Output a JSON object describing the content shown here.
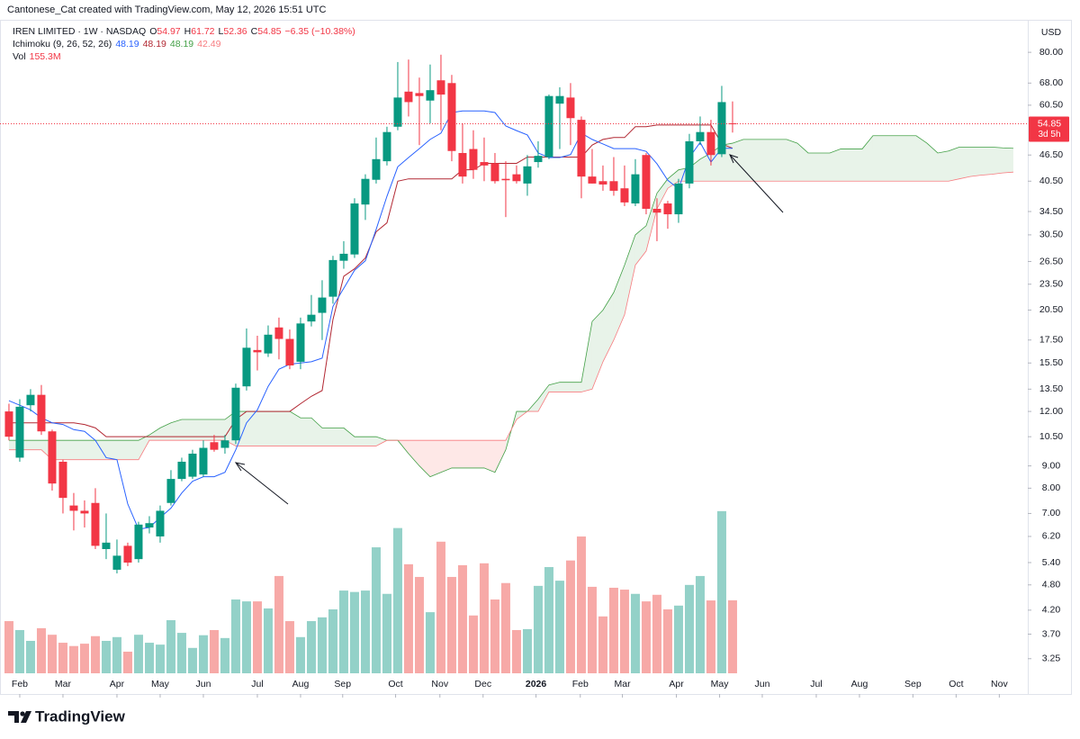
{
  "header": {
    "attribution": "Cantonese_Cat created with TradingView.com, May 12, 2026 15:51 UTC",
    "brand": "TradingView"
  },
  "chart_data": {
    "type": "candlestick",
    "symbol": "IREN LIMITED · 1W · NASDAQ",
    "ohlc_labels": [
      "O",
      "H",
      "L",
      "C"
    ],
    "change": "−6.35 (−10.38%)",
    "currency": "USD",
    "countdown": "3d 5h",
    "colors": {
      "up": "#089981",
      "down": "#f23645",
      "volume_up": "#93d1c8",
      "volume_down": "#f7a9a7"
    },
    "yscale": "log",
    "ylim": [
      2.71,
      95.9
    ],
    "yticks": [
      {
        "value": 80,
        "label": "80.00"
      },
      {
        "value": 68,
        "label": "68.00"
      },
      {
        "value": 60.5,
        "label": "60.50"
      },
      {
        "value": 46.5,
        "label": "46.50"
      },
      {
        "value": 40.5,
        "label": "40.50"
      },
      {
        "value": 34.5,
        "label": "34.50"
      },
      {
        "value": 30.5,
        "label": "30.50"
      },
      {
        "value": 26.5,
        "label": "26.50"
      },
      {
        "value": 23.5,
        "label": "23.50"
      },
      {
        "value": 20.5,
        "label": "20.50"
      },
      {
        "value": 17.5,
        "label": "17.50"
      },
      {
        "value": 15.5,
        "label": "15.50"
      },
      {
        "value": 13.5,
        "label": "13.50"
      },
      {
        "value": 12,
        "label": "12.00"
      },
      {
        "value": 10.5,
        "label": "10.50"
      },
      {
        "value": 9,
        "label": "9.00"
      },
      {
        "value": 8,
        "label": "8.00"
      },
      {
        "value": 7,
        "label": "7.00"
      },
      {
        "value": 6.2,
        "label": "6.20"
      },
      {
        "value": 5.4,
        "label": "5.40"
      },
      {
        "value": 4.8,
        "label": "4.80"
      },
      {
        "value": 4.2,
        "label": "4.20"
      },
      {
        "value": 3.7,
        "label": "3.70"
      },
      {
        "value": 3.25,
        "label": "3.25"
      }
    ],
    "xlim": [
      -0.83,
      94.17
    ],
    "xticks": [
      {
        "value": 1,
        "label": "Feb"
      },
      {
        "value": 5,
        "label": "Mar"
      },
      {
        "value": 10,
        "label": "Apr"
      },
      {
        "value": 14,
        "label": "May"
      },
      {
        "value": 18,
        "label": "Jun"
      },
      {
        "value": 23,
        "label": "Jul"
      },
      {
        "value": 27,
        "label": "Aug"
      },
      {
        "value": 30.9,
        "label": "Sep"
      },
      {
        "value": 35.8,
        "label": "Oct"
      },
      {
        "value": 39.9,
        "label": "Nov"
      },
      {
        "value": 43.9,
        "label": "Dec"
      },
      {
        "value": 48.8,
        "label": "2026"
      },
      {
        "value": 52.9,
        "label": "Feb"
      },
      {
        "value": 56.8,
        "label": "Mar"
      },
      {
        "value": 61.8,
        "label": "Apr"
      },
      {
        "value": 65.8,
        "label": "May"
      },
      {
        "value": 69.75,
        "label": "Jun"
      },
      {
        "value": 74.75,
        "label": "Jul"
      },
      {
        "value": 78.75,
        "label": "Aug"
      },
      {
        "value": 83.7,
        "label": "Sep"
      },
      {
        "value": 87.7,
        "label": "Oct"
      },
      {
        "value": 91.7,
        "label": "Nov"
      }
    ],
    "open": [
      12,
      9.4,
      12.4,
      13.1,
      10.8,
      9.2,
      7.3,
      7.1,
      7.4,
      5.8,
      5.2,
      5.9,
      5.5,
      6.5,
      6.2,
      7.4,
      8.4,
      8.5,
      8.6,
      10.2,
      9.9,
      10.3,
      13.7,
      16.6,
      16.3,
      18.7,
      17.6,
      15.6,
      19.3,
      20.2,
      22,
      26.6,
      27.5,
      35.8,
      40.8,
      45,
      54,
      65,
      64.5,
      62,
      69,
      68,
      47,
      48,
      44.8,
      44.5,
      41,
      42,
      40,
      44.8,
      46,
      61,
      63,
      56,
      41.5,
      40.5,
      40.5,
      39,
      36,
      46.5,
      35,
      36,
      34,
      40,
      50,
      52.5,
      46.7,
      54.97
    ],
    "high": [
      12.5,
      12.8,
      13.5,
      13.8,
      10.9,
      9.3,
      7.8,
      7.5,
      8.0,
      7.0,
      6.1,
      6.0,
      6.7,
      6.9,
      7.3,
      8.8,
      9.4,
      9.8,
      10.3,
      10.6,
      10.6,
      13.9,
      18.6,
      17.9,
      18.9,
      19.7,
      18.5,
      19.7,
      22.2,
      24,
      27.3,
      29.5,
      37,
      42,
      51,
      54,
      76,
      77,
      70,
      75,
      79,
      71,
      55,
      53,
      51,
      47,
      45,
      44,
      46.5,
      50,
      64,
      66.5,
      68,
      57,
      48,
      44,
      46,
      44,
      45.5,
      47,
      37,
      36.5,
      41,
      52,
      57,
      56,
      67,
      61.72
    ],
    "low": [
      10.3,
      9.2,
      12,
      10.6,
      7.9,
      7.0,
      6.4,
      6.5,
      5.8,
      5.5,
      5.1,
      5.3,
      5.4,
      6.3,
      6.0,
      7.3,
      8.3,
      8.4,
      8.5,
      9.7,
      9.6,
      10.1,
      13.4,
      14.9,
      16.0,
      15.8,
      15.0,
      15.0,
      18.8,
      17.5,
      21.2,
      25.5,
      27,
      33,
      40,
      44,
      53,
      57,
      49,
      55,
      53,
      45,
      40,
      41,
      40.5,
      40,
      33.5,
      40,
      37.5,
      43.5,
      45.5,
      48,
      49,
      37,
      40,
      38.5,
      37.5,
      35.5,
      35.5,
      34,
      29.5,
      31.5,
      32.5,
      39,
      49,
      44,
      46,
      52.36
    ],
    "close": [
      10.5,
      12.3,
      13.1,
      10.8,
      8.2,
      7.6,
      7.1,
      7.0,
      5.9,
      6.0,
      5.6,
      5.4,
      6.6,
      6.65,
      7.1,
      8.4,
      9.2,
      9.6,
      9.9,
      9.8,
      10.3,
      13.6,
      16.8,
      16.4,
      18.0,
      17.6,
      15.3,
      19.1,
      20.0,
      21.9,
      26.7,
      27.6,
      36.0,
      41.0,
      45.5,
      52.5,
      63,
      61.5,
      63.5,
      65.5,
      64,
      47.5,
      41.5,
      43,
      44,
      40.5,
      40.7,
      40.5,
      43.8,
      46.3,
      63.5,
      63.5,
      56.5,
      41.5,
      40,
      39.8,
      38.5,
      36.2,
      42,
      35,
      34.3,
      34,
      40,
      50,
      52.5,
      46.5,
      61.5,
      54.85
    ],
    "volume": {
      "name": "Vol",
      "ylim": [
        0,
        383
      ],
      "values": [
        111,
        92,
        69,
        96,
        82,
        65,
        58,
        63,
        79,
        69,
        77,
        46,
        82,
        65,
        61,
        113,
        86,
        54,
        81,
        92,
        75,
        157,
        153,
        153,
        138,
        207,
        111,
        77,
        111,
        119,
        136,
        176,
        173,
        176,
        268,
        169,
        309,
        232,
        205,
        130,
        280,
        205,
        230,
        123,
        234,
        157,
        192,
        92,
        94,
        186,
        226,
        197,
        240,
        291,
        184,
        121,
        182,
        178,
        169,
        153,
        167,
        136,
        144,
        188,
        207,
        155,
        345,
        155.3
      ],
      "value_labels": [
        null,
        null,
        null,
        null,
        null,
        null,
        null,
        null,
        null,
        null,
        null,
        null,
        null,
        null,
        null,
        null,
        null,
        null,
        null,
        null,
        null,
        null,
        null,
        null,
        null,
        null,
        null,
        null,
        null,
        null,
        null,
        null,
        null,
        null,
        null,
        null,
        null,
        null,
        null,
        null,
        null,
        null,
        null,
        null,
        null,
        null,
        null,
        null,
        null,
        null,
        null,
        null,
        null,
        null,
        null,
        null,
        null,
        null,
        null,
        null,
        null,
        null,
        null,
        null,
        null,
        null,
        null,
        "155.3M"
      ]
    },
    "ichimoku": {
      "name": "Ichimoku (9, 26, 52, 26)",
      "conversion": {
        "color": "#2962ff",
        "values": [
          12.7,
          12.4,
          12.1,
          11.6,
          11.3,
          11.2,
          10.9,
          10.8,
          10.3,
          9.4,
          9.3,
          7.36,
          6.44,
          6.5,
          6.85,
          7.2,
          7.8,
          8.3,
          8.5,
          8.5,
          8.7,
          9.8,
          11.3,
          12.1,
          13.7,
          15.0,
          15.4,
          15.5,
          15.6,
          15.9,
          20.9,
          23.0,
          25.3,
          26.6,
          31.4,
          37.4,
          43.7,
          45.9,
          48.1,
          50.5,
          52.2,
          58.2,
          58.7,
          58.7,
          58.7,
          58.2,
          54.2,
          52.9,
          51.7,
          47.0,
          45.9,
          45.9,
          46.6,
          52.2,
          50.5,
          49.3,
          48.1,
          48.1,
          48.1,
          47.4,
          44.4,
          40.7,
          38.9,
          45.9,
          49.7,
          44.8,
          48.19,
          48.19
        ]
      },
      "base": {
        "color": "#b22833",
        "values": [
          11.3,
          11.3,
          11.3,
          11.3,
          11.3,
          11.3,
          11.3,
          11.2,
          11.0,
          10.5,
          10.5,
          10.5,
          10.5,
          10.5,
          10.5,
          10.5,
          10.5,
          10.5,
          10.5,
          10.5,
          10.5,
          11.5,
          12.0,
          12.0,
          12.0,
          12.0,
          12.0,
          12.5,
          13.0,
          13.4,
          19.5,
          24.5,
          25.5,
          27.0,
          31.0,
          32.5,
          40.5,
          41.0,
          41.0,
          41.0,
          41.0,
          41.0,
          43.0,
          43.0,
          44.5,
          44.5,
          44.5,
          44.5,
          46.0,
          46.0,
          46.0,
          46.0,
          46.0,
          46.0,
          49.0,
          50.5,
          51.0,
          51.0,
          54.0,
          54.0,
          54.5,
          54.5,
          54.5,
          54.5,
          54.5,
          54.5,
          49.3,
          48.19
        ]
      },
      "span_a": {
        "color": "#43a047",
        "values": [
          10.3,
          10.3,
          10.3,
          10.3,
          10.3,
          10.3,
          10.3,
          10.3,
          10.3,
          10.3,
          10.3,
          10.3,
          10.3,
          10.6,
          11.0,
          11.3,
          11.5,
          11.5,
          11.5,
          11.5,
          11.5,
          12.0,
          12.0,
          12.0,
          12.0,
          12.0,
          12.0,
          11.6,
          11.6,
          11.0,
          11.0,
          11.0,
          10.5,
          10.5,
          10.5,
          10.3,
          10.3,
          9.6,
          9.0,
          8.5,
          8.7,
          8.9,
          8.9,
          8.9,
          8.9,
          8.7,
          9.8,
          12.0,
          12.0,
          12.8,
          13.8,
          14.0,
          14.0,
          14.0,
          19.3,
          20.5,
          22.5,
          26.0,
          30.5,
          32.0,
          38.0,
          41.0,
          43.0,
          43.5,
          45.5,
          47.0,
          49.0,
          49.5,
          50.5,
          50.5,
          50.5,
          50.5,
          50.5,
          49.5,
          47.0,
          47.0,
          47.0,
          48.0,
          48.0,
          48.0,
          51.5,
          51.5,
          51.5,
          51.5,
          51.5,
          49.5,
          47.0,
          47.5,
          48.5,
          48.5,
          48.5,
          48.5,
          48.3,
          48.19
        ]
      },
      "span_b": {
        "color": "#f77c80",
        "values": [
          9.8,
          9.8,
          9.8,
          9.8,
          9.3,
          9.3,
          9.3,
          9.3,
          9.3,
          9.3,
          9.3,
          9.3,
          9.3,
          10.3,
          10.3,
          10.3,
          10.3,
          10.3,
          10.3,
          10.3,
          10.3,
          10.0,
          10.0,
          10.0,
          10.0,
          10.0,
          10.0,
          10.0,
          10.0,
          10.0,
          10.0,
          10.0,
          10.0,
          10.0,
          10.0,
          10.3,
          10.3,
          10.3,
          10.3,
          10.3,
          10.3,
          10.3,
          10.3,
          10.3,
          10.3,
          10.3,
          10.3,
          11.5,
          12.0,
          12.0,
          13.3,
          13.3,
          13.3,
          13.3,
          13.5,
          15.6,
          17.5,
          20,
          26,
          28,
          35,
          39,
          40.5,
          40.5,
          40.5,
          40.5,
          40.5,
          40.5,
          40.5,
          40.5,
          40.5,
          40.5,
          40.5,
          40.5,
          40.5,
          40.5,
          40.5,
          40.5,
          40.5,
          40.5,
          40.5,
          40.5,
          40.5,
          40.5,
          40.5,
          40.5,
          40.5,
          40.5,
          41.0,
          41.5,
          41.8,
          42.0,
          42.3,
          42.49
        ]
      }
    }
  }
}
